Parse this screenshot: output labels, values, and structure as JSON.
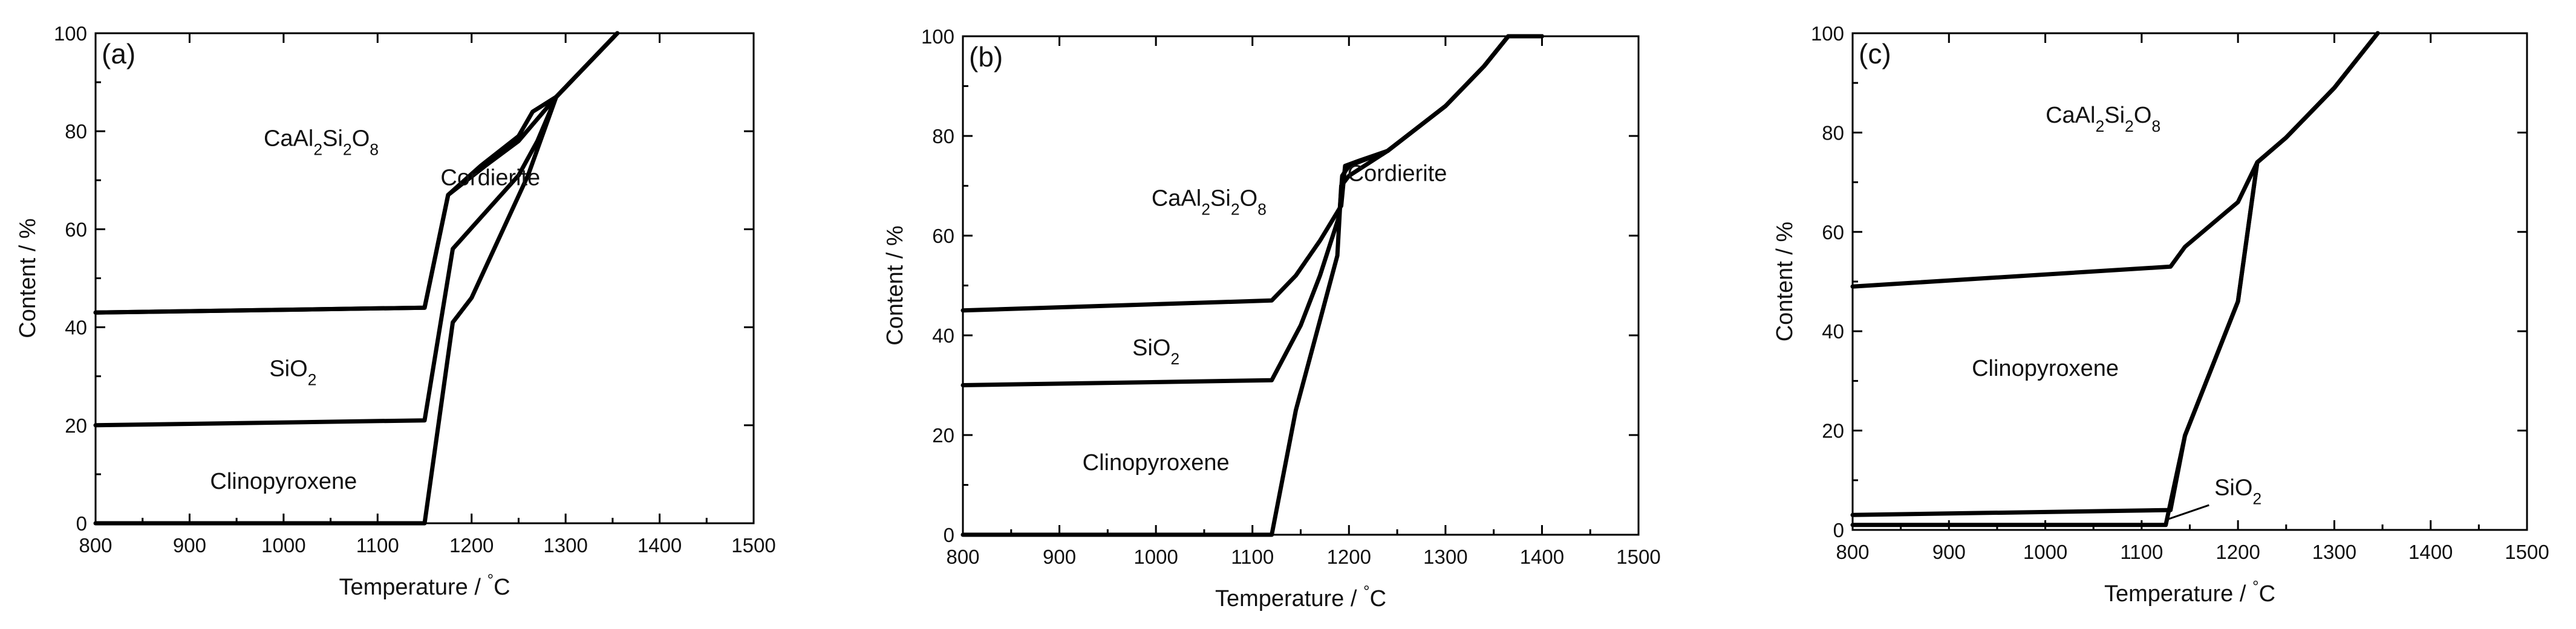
{
  "figure": {
    "title": "",
    "xlabel_parts": [
      "Temperature / ",
      "°",
      "C"
    ],
    "ylabel": "Content / %"
  },
  "chart_data": [
    {
      "type": "area",
      "panel": "(a)",
      "xlabel": "Temperature / °C",
      "ylabel": "Content / %",
      "xlim": [
        800,
        1500
      ],
      "ylim": [
        0,
        100
      ],
      "xticks": [
        800,
        900,
        1000,
        1100,
        1200,
        1300,
        1400,
        1500
      ],
      "yticks": [
        0,
        20,
        40,
        60,
        80,
        100
      ],
      "regions": [
        {
          "label": "CaAl2Si2O8",
          "base": "CaAl",
          "parts": [
            [
              "Al",
              false
            ],
            [
              "2",
              true
            ],
            [
              "Si",
              false
            ],
            [
              "2",
              true
            ],
            [
              "O",
              false
            ],
            [
              "8",
              true
            ]
          ],
          "x": 1040,
          "y": 77
        },
        {
          "label": "Cordierite",
          "base": "Cordierite",
          "parts": [],
          "x": 1220,
          "y": 69
        },
        {
          "label": "SiO2",
          "base": "SiO",
          "parts": [
            [
              "2",
              true
            ]
          ],
          "x": 1010,
          "y": 30
        },
        {
          "label": "Clinopyroxene",
          "base": "Clinopyroxene",
          "parts": [],
          "x": 1000,
          "y": 7
        }
      ],
      "boundaries": [
        {
          "name": "clinopyroxene-upper",
          "x": [
            800,
            1150,
            1180,
            1200,
            1260,
            1290,
            1355
          ],
          "y": [
            0,
            0,
            41,
            46,
            71,
            87,
            100
          ]
        },
        {
          "name": "sio2-upper",
          "x": [
            800,
            1150,
            1180,
            1250,
            1270,
            1290,
            1355
          ],
          "y": [
            20,
            21,
            56,
            71,
            78,
            87,
            100
          ]
        },
        {
          "name": "caal2si2o8-lower",
          "x": [
            800,
            1150,
            1175,
            1215,
            1250,
            1290,
            1355
          ],
          "y": [
            43,
            44,
            67,
            73,
            78,
            87,
            100
          ]
        },
        {
          "name": "cordierite-upper",
          "x": [
            800,
            1150,
            1175,
            1210,
            1250,
            1265,
            1290,
            1355
          ],
          "y": [
            43,
            44,
            67,
            73,
            79,
            84,
            87,
            100
          ]
        }
      ]
    },
    {
      "type": "area",
      "panel": "(b)",
      "xlabel": "Temperature / °C",
      "ylabel": "Content / %",
      "xlim": [
        800,
        1500
      ],
      "ylim": [
        0,
        100
      ],
      "xticks": [
        800,
        900,
        1000,
        1100,
        1200,
        1300,
        1400,
        1500
      ],
      "yticks": [
        0,
        20,
        40,
        60,
        80,
        100
      ],
      "regions": [
        {
          "label": "CaAl2Si2O8",
          "base": "CaAl",
          "parts": [
            [
              "Al",
              false
            ],
            [
              "2",
              true
            ],
            [
              "Si",
              false
            ],
            [
              "2",
              true
            ],
            [
              "O",
              false
            ],
            [
              "8",
              true
            ]
          ],
          "x": 1055,
          "y": 66
        },
        {
          "label": "Cordierite",
          "base": "Cordierite",
          "parts": [],
          "x": 1250,
          "y": 71
        },
        {
          "label": "SiO2",
          "base": "SiO",
          "parts": [
            [
              "2",
              true
            ]
          ],
          "x": 1000,
          "y": 36
        },
        {
          "label": "Clinopyroxene",
          "base": "Clinopyroxene",
          "parts": [],
          "x": 1000,
          "y": 13
        }
      ],
      "boundaries": [
        {
          "name": "clinopyroxene-upper",
          "x": [
            800,
            1120,
            1145,
            1170,
            1188,
            1192,
            1200,
            1240,
            1300,
            1340,
            1365,
            1400
          ],
          "y": [
            0,
            0,
            25,
            43,
            56,
            70,
            72,
            77,
            86,
            94,
            100,
            100
          ]
        },
        {
          "name": "sio2-upper",
          "x": [
            800,
            1120,
            1150,
            1170,
            1190,
            1193,
            1200,
            1240,
            1300,
            1340,
            1365,
            1400
          ],
          "y": [
            30,
            31,
            42,
            52,
            64,
            72,
            74,
            77,
            86,
            94,
            100,
            100
          ]
        },
        {
          "name": "caal2si2o8-lower",
          "x": [
            800,
            1120,
            1145,
            1170,
            1192,
            1196,
            1210,
            1240,
            1300,
            1340,
            1365,
            1400
          ],
          "y": [
            45,
            47,
            52,
            59,
            66,
            74,
            75,
            77,
            86,
            94,
            100,
            100
          ]
        }
      ]
    },
    {
      "type": "area",
      "panel": "(c)",
      "xlabel": "Temperature / °C",
      "ylabel": "Content / %",
      "xlim": [
        800,
        1500
      ],
      "ylim": [
        0,
        100
      ],
      "xticks": [
        800,
        900,
        1000,
        1100,
        1200,
        1300,
        1400,
        1500
      ],
      "yticks": [
        0,
        20,
        40,
        60,
        80,
        100
      ],
      "regions": [
        {
          "label": "CaAl2Si2O8",
          "base": "CaAl",
          "parts": [
            [
              "Al",
              false
            ],
            [
              "2",
              true
            ],
            [
              "Si",
              false
            ],
            [
              "2",
              true
            ],
            [
              "O",
              false
            ],
            [
              "8",
              true
            ]
          ],
          "x": 1060,
          "y": 82
        },
        {
          "label": "Clinopyroxene",
          "base": "Clinopyroxene",
          "parts": [],
          "x": 1000,
          "y": 31
        },
        {
          "label": "SiO2",
          "base": "SiO",
          "parts": [
            [
              "2",
              true
            ]
          ],
          "x": 1200,
          "y": 7
        }
      ],
      "annotation": {
        "text": "SiO2",
        "from": [
          1170,
          5
        ],
        "to": [
          1125,
          2
        ]
      },
      "boundaries": [
        {
          "name": "clinopyroxene-lower",
          "x": [
            800,
            1125,
            1145,
            1200,
            1220,
            1250,
            1300,
            1345
          ],
          "y": [
            1,
            1,
            19,
            46,
            74,
            79,
            89,
            100
          ]
        },
        {
          "name": "sio2-upper",
          "x": [
            800,
            1130,
            1145,
            1200,
            1220,
            1250,
            1300,
            1345
          ],
          "y": [
            3,
            4,
            19,
            46,
            74,
            79,
            89,
            100
          ]
        },
        {
          "name": "caal2si2o8-lower",
          "x": [
            800,
            1130,
            1145,
            1200,
            1220,
            1250,
            1300,
            1345
          ],
          "y": [
            49,
            53,
            57,
            66,
            74,
            79,
            89,
            100
          ]
        }
      ]
    }
  ]
}
